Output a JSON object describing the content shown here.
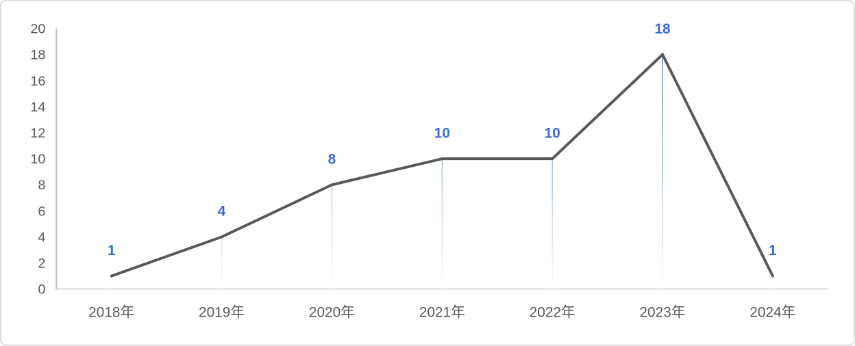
{
  "chart_data": {
    "type": "line",
    "title": "",
    "xlabel": "",
    "ylabel": "",
    "categories": [
      "2018年",
      "2019年",
      "2020年",
      "2021年",
      "2022年",
      "2023年",
      "2024年"
    ],
    "values": [
      1,
      4,
      8,
      10,
      10,
      18,
      1
    ],
    "data_labels": [
      "1",
      "4",
      "8",
      "10",
      "10",
      "18",
      "1"
    ],
    "ylim": [
      0,
      20
    ],
    "y_ticks": [
      0,
      2,
      4,
      6,
      8,
      10,
      12,
      14,
      16,
      18,
      20
    ],
    "grid": false,
    "legend": "none",
    "drop_lines": true
  },
  "style": {
    "series_line_color": "#57585B",
    "series_line_width": 4,
    "data_label_color": "#3A6BD2",
    "drop_line_top_color": "#4472C4",
    "drop_line_bottom_color": "#FFFFFF",
    "axis_text_color": "#595959",
    "y_axis_line_color": "#BFBFBF",
    "x_axis_line_color": "#D9D9D9",
    "frame_border_color": "#DCDCDC",
    "background_color": "#FFFFFF"
  }
}
